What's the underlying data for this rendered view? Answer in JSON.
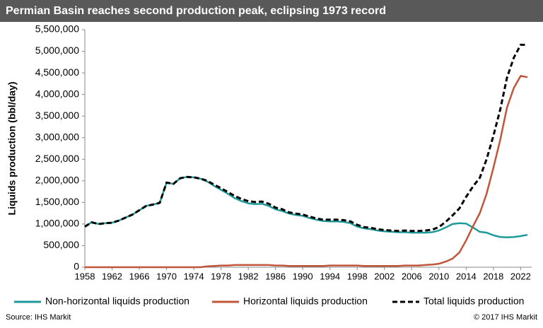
{
  "chart_data": {
    "type": "line",
    "title": "Permian Basin reaches second production peak, eclipsing 1973 record",
    "y_label": "Liquids production (bbl/day)",
    "source": "Source: IHS Markit",
    "copyright": "© 2017 IHS Markit",
    "x": [
      1958,
      1959,
      1960,
      1961,
      1962,
      1963,
      1964,
      1965,
      1966,
      1967,
      1968,
      1969,
      1970,
      1971,
      1972,
      1973,
      1974,
      1975,
      1976,
      1977,
      1978,
      1979,
      1980,
      1981,
      1982,
      1983,
      1984,
      1985,
      1986,
      1987,
      1988,
      1989,
      1990,
      1991,
      1992,
      1993,
      1994,
      1995,
      1996,
      1997,
      1998,
      1999,
      2000,
      2001,
      2002,
      2003,
      2004,
      2005,
      2006,
      2007,
      2008,
      2009,
      2010,
      2011,
      2012,
      2013,
      2014,
      2015,
      2016,
      2017,
      2018,
      2019,
      2020,
      2021,
      2022,
      2023
    ],
    "series": [
      {
        "name": "Non-horizontal liquids production",
        "color": "#1f9a9a",
        "dash": false,
        "values": [
          940000,
          1040000,
          1000000,
          1020000,
          1030000,
          1080000,
          1150000,
          1220000,
          1320000,
          1420000,
          1450000,
          1490000,
          1960000,
          1930000,
          2060000,
          2090000,
          2080000,
          2050000,
          1980000,
          1880000,
          1790000,
          1700000,
          1600000,
          1530000,
          1480000,
          1460000,
          1470000,
          1420000,
          1340000,
          1300000,
          1240000,
          1210000,
          1190000,
          1140000,
          1100000,
          1070000,
          1060000,
          1060000,
          1050000,
          1020000,
          940000,
          900000,
          880000,
          850000,
          830000,
          820000,
          810000,
          810000,
          800000,
          800000,
          800000,
          810000,
          850000,
          920000,
          1000000,
          1020000,
          1010000,
          920000,
          820000,
          800000,
          740000,
          700000,
          690000,
          700000,
          720000,
          750000
        ]
      },
      {
        "name": "Horizontal liquids production",
        "color": "#c0553a",
        "dash": false,
        "values": [
          0,
          0,
          0,
          0,
          0,
          0,
          0,
          0,
          0,
          0,
          0,
          0,
          0,
          0,
          0,
          0,
          0,
          0,
          20000,
          30000,
          40000,
          40000,
          50000,
          50000,
          50000,
          50000,
          50000,
          50000,
          40000,
          40000,
          30000,
          30000,
          30000,
          30000,
          30000,
          30000,
          40000,
          40000,
          40000,
          40000,
          40000,
          30000,
          30000,
          30000,
          30000,
          30000,
          30000,
          40000,
          40000,
          40000,
          50000,
          60000,
          80000,
          130000,
          200000,
          340000,
          620000,
          950000,
          1250000,
          1700000,
          2300000,
          2950000,
          3700000,
          4150000,
          4430000,
          4400000
        ]
      },
      {
        "name": "Total liquids production",
        "color": "#000000",
        "dash": true,
        "values": [
          940000,
          1040000,
          1000000,
          1020000,
          1030000,
          1080000,
          1150000,
          1220000,
          1320000,
          1420000,
          1450000,
          1490000,
          1960000,
          1930000,
          2060000,
          2090000,
          2080000,
          2050000,
          2000000,
          1910000,
          1830000,
          1740000,
          1650000,
          1580000,
          1530000,
          1510000,
          1520000,
          1470000,
          1380000,
          1340000,
          1270000,
          1240000,
          1220000,
          1170000,
          1130000,
          1100000,
          1100000,
          1100000,
          1090000,
          1060000,
          980000,
          930000,
          910000,
          880000,
          860000,
          850000,
          840000,
          850000,
          840000,
          840000,
          850000,
          870000,
          930000,
          1050000,
          1200000,
          1360000,
          1630000,
          1870000,
          2070000,
          2500000,
          3040000,
          3650000,
          4390000,
          4850000,
          5150000,
          5150000
        ]
      }
    ],
    "xlim": [
      1958,
      2023
    ],
    "xticks": [
      1958,
      1962,
      1966,
      1970,
      1974,
      1978,
      1982,
      1986,
      1990,
      1994,
      1998,
      2002,
      2006,
      2010,
      2014,
      2018,
      2022
    ],
    "ylim": [
      0,
      5500000
    ],
    "yticks": [
      0,
      {
        "value": 500000,
        "label": "500,000"
      },
      {
        "value": 1000000,
        "label": "1,000,000"
      },
      {
        "value": 1500000,
        "label": "1,500,000"
      },
      {
        "value": 2000000,
        "label": "2,000,000"
      },
      {
        "value": 2500000,
        "label": "2,500,000"
      },
      {
        "value": 3000000,
        "label": "3,000,000"
      },
      {
        "value": 3500000,
        "label": "3,500,000"
      },
      {
        "value": 4000000,
        "label": "4,000,000"
      },
      {
        "value": 4500000,
        "label": "4,500,000"
      },
      {
        "value": 5000000,
        "label": "5,000,000"
      },
      {
        "value": 5500000,
        "label": "5,500,000"
      }
    ],
    "grid": false,
    "legend": "bottom"
  }
}
